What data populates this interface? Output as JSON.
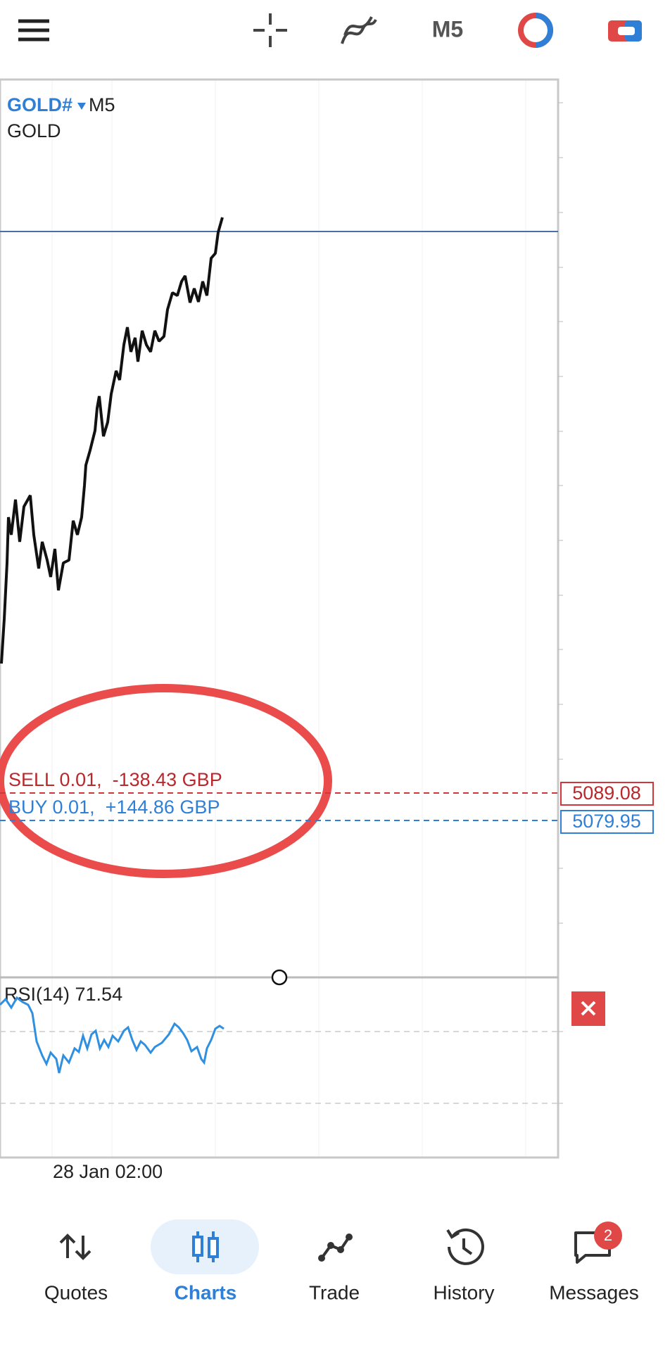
{
  "toolbar": {
    "timeframe": "M5"
  },
  "chart": {
    "symbol": "GOLD#",
    "timeframe": "M5",
    "description": "GOLD",
    "positions": [
      {
        "label": "SELL 0.01,  -138.43 GBP",
        "price": 5089.08
      },
      {
        "label": "BUY 0.01,  +144.86 GBP",
        "price": 5079.95
      }
    ],
    "indicator": "RSI(14) 71.54",
    "time_label": "28 Jan 02:00"
  },
  "nav": {
    "items": [
      {
        "label": "Quotes"
      },
      {
        "label": "Charts"
      },
      {
        "label": "Trade"
      },
      {
        "label": "History"
      },
      {
        "label": "Messages",
        "badge": "2"
      }
    ]
  }
}
